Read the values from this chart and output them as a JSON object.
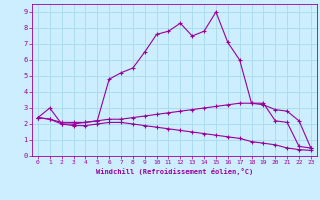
{
  "xlabel": "Windchill (Refroidissement éolien,°C)",
  "xlim": [
    -0.5,
    23.5
  ],
  "ylim": [
    0,
    9.5
  ],
  "xticks": [
    0,
    1,
    2,
    3,
    4,
    5,
    6,
    7,
    8,
    9,
    10,
    11,
    12,
    13,
    14,
    15,
    16,
    17,
    18,
    19,
    20,
    21,
    22,
    23
  ],
  "yticks": [
    0,
    1,
    2,
    3,
    4,
    5,
    6,
    7,
    8,
    9
  ],
  "background_color": "#cceeff",
  "grid_color": "#aaddee",
  "line_color": "#990099",
  "line1_x": [
    0,
    1,
    2,
    3,
    4,
    5,
    6,
    7,
    8,
    9,
    10,
    11,
    12,
    13,
    14,
    15,
    16,
    17,
    18,
    19,
    20,
    21,
    22,
    23
  ],
  "line1_y": [
    2.4,
    3.0,
    2.0,
    2.0,
    2.1,
    2.2,
    4.8,
    5.2,
    5.5,
    6.5,
    7.6,
    7.8,
    8.3,
    7.5,
    7.8,
    9.0,
    7.1,
    6.0,
    3.3,
    3.3,
    2.2,
    2.1,
    0.6,
    0.5
  ],
  "line2_x": [
    0,
    1,
    2,
    3,
    4,
    5,
    6,
    7,
    8,
    9,
    10,
    11,
    12,
    13,
    14,
    15,
    16,
    17,
    18,
    19,
    20,
    21,
    22,
    23
  ],
  "line2_y": [
    2.4,
    2.3,
    2.1,
    2.1,
    2.1,
    2.2,
    2.3,
    2.3,
    2.4,
    2.5,
    2.6,
    2.7,
    2.8,
    2.9,
    3.0,
    3.1,
    3.2,
    3.3,
    3.3,
    3.2,
    2.9,
    2.8,
    2.2,
    0.5
  ],
  "line3_x": [
    0,
    1,
    2,
    3,
    4,
    5,
    6,
    7,
    8,
    9,
    10,
    11,
    12,
    13,
    14,
    15,
    16,
    17,
    18,
    19,
    20,
    21,
    22,
    23
  ],
  "line3_y": [
    2.4,
    2.3,
    2.0,
    1.9,
    1.9,
    2.0,
    2.1,
    2.1,
    2.0,
    1.9,
    1.8,
    1.7,
    1.6,
    1.5,
    1.4,
    1.3,
    1.2,
    1.1,
    0.9,
    0.8,
    0.7,
    0.5,
    0.4,
    0.35
  ]
}
